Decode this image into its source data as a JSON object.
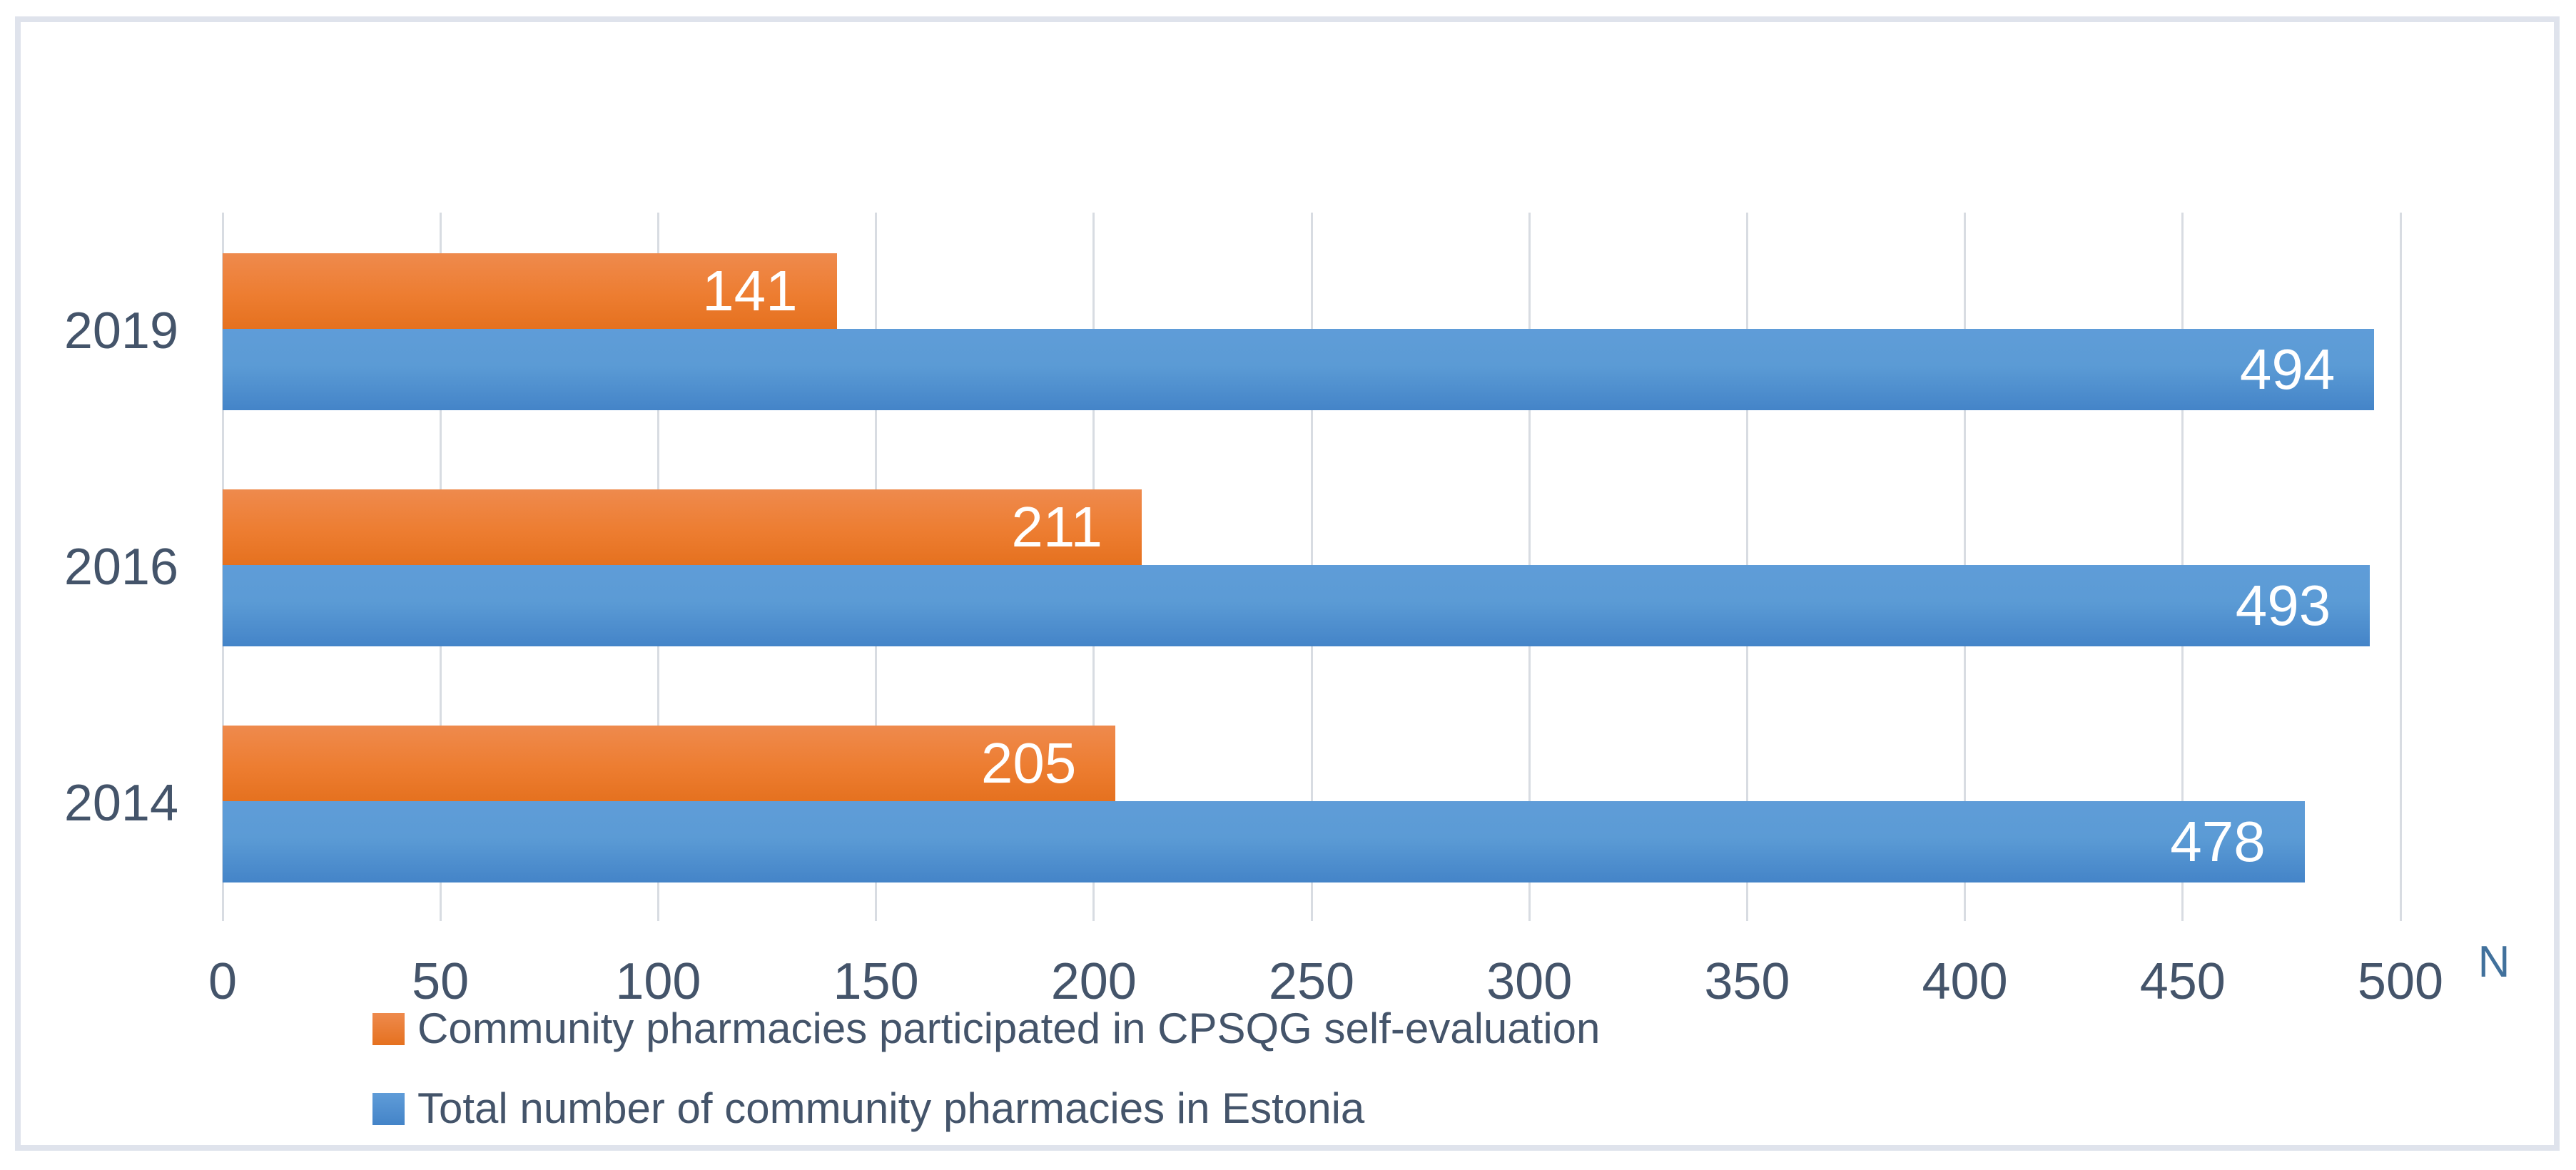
{
  "chart_data": {
    "type": "bar",
    "orientation": "horizontal",
    "title": "",
    "categories": [
      "2019",
      "2016",
      "2014"
    ],
    "series": [
      {
        "name": "Community pharmacies participated in CPSQG self-evaluation",
        "color": "#ED7D31",
        "values": [
          141,
          211,
          205
        ]
      },
      {
        "name": "Total number of community pharmacies in Estonia",
        "color": "#5B9BD5",
        "values": [
          494,
          493,
          478
        ]
      }
    ],
    "x_axis": {
      "title": "N",
      "title_color": "#41719C",
      "range": [
        0,
        500
      ],
      "ticks": [
        0,
        50,
        100,
        150,
        200,
        250,
        300,
        350,
        400,
        450,
        500
      ]
    },
    "data_labels": "inside-end-white",
    "grid": "vertical-only",
    "legend_position": "bottom-left",
    "colors": {
      "bar_orange": "#ED7D31",
      "bar_blue": "#5B9BD5",
      "axis_text": "#44546A",
      "axis_title_blue": "#41719C",
      "gridline": "#D8DCE2",
      "chart_border": "#DFE3EC",
      "background": "#FFFFFF",
      "data_label_text": "#FFFFFF"
    }
  }
}
